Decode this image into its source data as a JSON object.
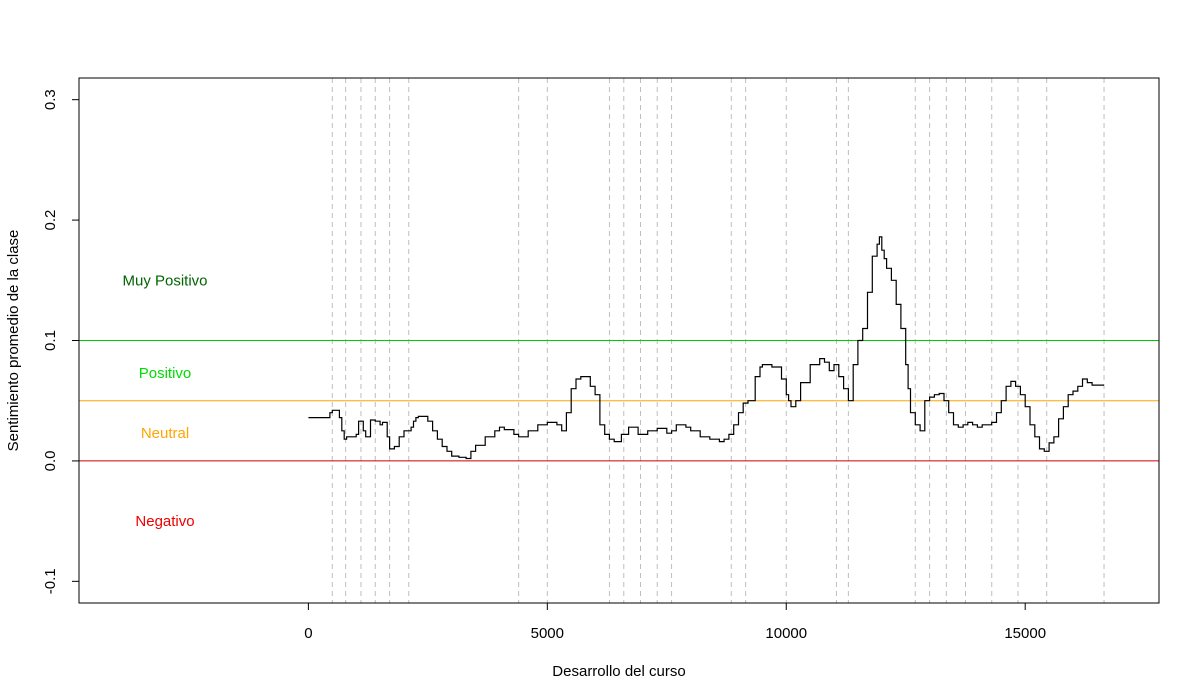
{
  "chart_data": {
    "type": "line",
    "xlabel": "Desarrollo del curso",
    "ylabel": "Sentimiento promedio de la clase",
    "xlim": [
      -4800,
      17800
    ],
    "ylim": [
      -0.118,
      0.318
    ],
    "x_ticks": [
      0,
      5000,
      10000,
      15000
    ],
    "x_tick_labels": [
      "0",
      "5000",
      "10000",
      "15000"
    ],
    "y_ticks": [
      -0.1,
      0.0,
      0.1,
      0.2,
      0.3
    ],
    "y_tick_labels": [
      "-0.1",
      "0.0",
      "0.1",
      "0.2",
      "0.3"
    ],
    "hlines": [
      {
        "y": 0.1,
        "color": "#00cc00"
      },
      {
        "y": 0.05,
        "color": "#ffa500"
      },
      {
        "y": 0.0,
        "color": "#cc0000"
      }
    ],
    "zone_labels": [
      {
        "text": "Muy Positivo",
        "x": -3000,
        "y": 0.15,
        "color": "#006400"
      },
      {
        "text": "Positivo",
        "x": -3000,
        "y": 0.073,
        "color": "#00dd00"
      },
      {
        "text": "Neutral",
        "x": -3000,
        "y": 0.023,
        "color": "#ffa500"
      },
      {
        "text": "Negativo",
        "x": -3000,
        "y": -0.05,
        "color": "#ee0000"
      }
    ],
    "vlines": [
      500,
      780,
      1100,
      1400,
      1700,
      2100,
      4400,
      5000,
      6300,
      6600,
      6950,
      7300,
      7600,
      8850,
      9150,
      10000,
      11050,
      11300,
      12700,
      13000,
      13350,
      13750,
      14300,
      14850,
      15450,
      16650
    ],
    "series": [
      {
        "color": "#000000",
        "x": [
          0,
          350,
          450,
          500,
          650,
          700,
          750,
          800,
          1000,
          1050,
          1150,
          1200,
          1300,
          1400,
          1500,
          1550,
          1650,
          1700,
          1800,
          1900,
          2000,
          2150,
          2200,
          2250,
          2300,
          2500,
          2600,
          2700,
          2800,
          2900,
          3000,
          3150,
          3300,
          3400,
          3500,
          3700,
          3900,
          4000,
          4100,
          4300,
          4400,
          4600,
          4800,
          5000,
          5200,
          5300,
          5400,
          5500,
          5600,
          5700,
          5800,
          5900,
          6000,
          6100,
          6200,
          6300,
          6400,
          6550,
          6700,
          6900,
          7100,
          7300,
          7500,
          7600,
          7700,
          7900,
          8000,
          8200,
          8400,
          8600,
          8700,
          8800,
          8900,
          9000,
          9100,
          9200,
          9350,
          9450,
          9500,
          9700,
          9900,
          10000,
          10050,
          10100,
          10200,
          10300,
          10500,
          10700,
          10800,
          10900,
          11000,
          11100,
          11200,
          11300,
          11400,
          11500,
          11600,
          11700,
          11800,
          11900,
          11950,
          12000,
          12050,
          12100,
          12200,
          12300,
          12400,
          12500,
          12550,
          12600,
          12700,
          12800,
          12900,
          13000,
          13100,
          13200,
          13300,
          13400,
          13500,
          13600,
          13700,
          13800,
          13900,
          14000,
          14100,
          14200,
          14300,
          14400,
          14500,
          14600,
          14700,
          14800,
          14900,
          15000,
          15100,
          15200,
          15300,
          15400,
          15500,
          15600,
          15700,
          15800,
          15900,
          16000,
          16100,
          16200,
          16300,
          16400,
          16500,
          16650
        ],
        "y": [
          0.036,
          0.036,
          0.04,
          0.042,
          0.036,
          0.025,
          0.018,
          0.02,
          0.022,
          0.033,
          0.025,
          0.02,
          0.034,
          0.033,
          0.03,
          0.032,
          0.02,
          0.01,
          0.012,
          0.02,
          0.025,
          0.028,
          0.033,
          0.036,
          0.037,
          0.033,
          0.025,
          0.018,
          0.012,
          0.008,
          0.004,
          0.003,
          0.002,
          0.008,
          0.013,
          0.02,
          0.025,
          0.028,
          0.026,
          0.022,
          0.02,
          0.025,
          0.03,
          0.032,
          0.03,
          0.025,
          0.04,
          0.06,
          0.068,
          0.07,
          0.07,
          0.062,
          0.055,
          0.03,
          0.022,
          0.018,
          0.016,
          0.022,
          0.028,
          0.022,
          0.025,
          0.027,
          0.023,
          0.025,
          0.03,
          0.028,
          0.025,
          0.02,
          0.018,
          0.016,
          0.018,
          0.022,
          0.03,
          0.04,
          0.048,
          0.05,
          0.07,
          0.078,
          0.08,
          0.078,
          0.068,
          0.055,
          0.05,
          0.045,
          0.05,
          0.065,
          0.08,
          0.085,
          0.082,
          0.075,
          0.08,
          0.07,
          0.06,
          0.05,
          0.08,
          0.1,
          0.11,
          0.14,
          0.17,
          0.18,
          0.186,
          0.175,
          0.168,
          0.16,
          0.15,
          0.13,
          0.11,
          0.08,
          0.06,
          0.04,
          0.03,
          0.025,
          0.05,
          0.053,
          0.055,
          0.056,
          0.05,
          0.04,
          0.03,
          0.028,
          0.03,
          0.032,
          0.03,
          0.028,
          0.03,
          0.03,
          0.032,
          0.04,
          0.05,
          0.062,
          0.066,
          0.062,
          0.055,
          0.045,
          0.03,
          0.02,
          0.01,
          0.008,
          0.015,
          0.02,
          0.035,
          0.045,
          0.055,
          0.058,
          0.062,
          0.068,
          0.065,
          0.063,
          0.063,
          0.063
        ]
      }
    ],
    "grid": false,
    "legend": "none"
  }
}
